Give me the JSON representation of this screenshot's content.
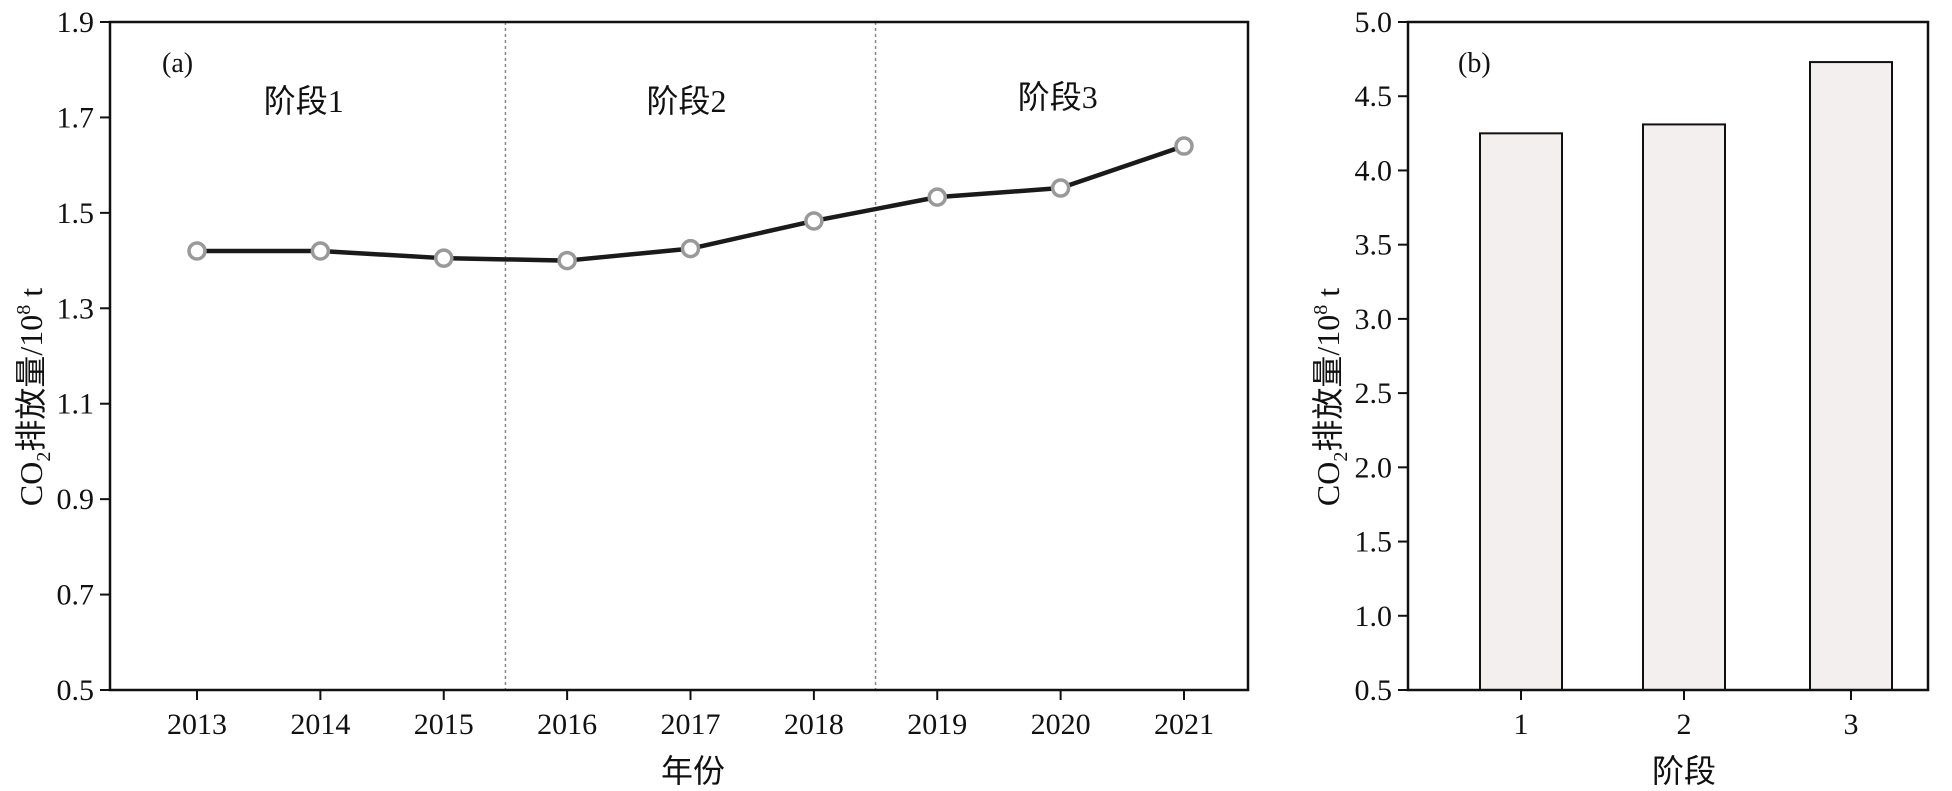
{
  "chart_data": [
    {
      "type": "line",
      "panel_label": "(a)",
      "x": [
        "2013",
        "2014",
        "2015",
        "2016",
        "2017",
        "2018",
        "2019",
        "2020",
        "2021"
      ],
      "values": [
        1.42,
        1.42,
        1.405,
        1.4,
        1.425,
        1.483,
        1.533,
        1.552,
        1.64
      ],
      "ylim": [
        0.5,
        1.9
      ],
      "yticks": [
        "0.5",
        "0.7",
        "0.9",
        "1.1",
        "1.3",
        "1.5",
        "1.7",
        "1.9"
      ],
      "xlabel": "年份",
      "ylabel": {
        "prefix": "CO",
        "sub": "2",
        "mid": "排放量/10",
        "sup": "8",
        "suffix": " t"
      },
      "stages": [
        "阶段1",
        "阶段2",
        "阶段3"
      ],
      "stage_dividers_after_index": [
        2,
        5
      ],
      "colors": {
        "line": "#1a1a1a",
        "marker_edge": "#999999",
        "marker_fill": "#ffffff",
        "divider": "#888888"
      }
    },
    {
      "type": "bar",
      "panel_label": "(b)",
      "categories": [
        "1",
        "2",
        "3"
      ],
      "values": [
        4.25,
        4.31,
        4.73
      ],
      "ylim": [
        0.5,
        5.0
      ],
      "yticks": [
        "0.5",
        "1.0",
        "1.5",
        "2.0",
        "2.5",
        "3.0",
        "3.5",
        "4.0",
        "4.5",
        "5.0"
      ],
      "xlabel": "阶段",
      "ylabel": {
        "prefix": "CO",
        "sub": "2",
        "mid": "排放量/10",
        "sup": "8",
        "suffix": " t"
      },
      "colors": {
        "bar_fill": "#f2efee",
        "bar_edge": "#111111"
      }
    }
  ]
}
